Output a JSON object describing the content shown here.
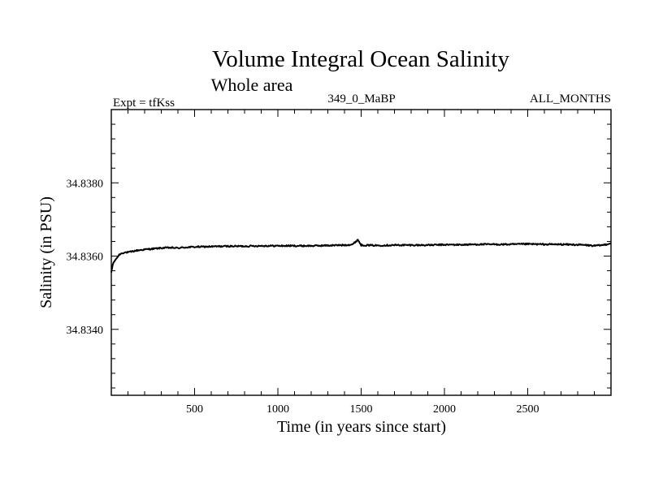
{
  "chart_data": {
    "type": "line",
    "title": "Volume Integral Ocean Salinity",
    "subtitle": "Whole area",
    "experiment_label": "Expt = tfKss",
    "run_label": "349_0_MaBP",
    "period_label": "ALL_MONTHS",
    "xlabel": "Time (in years since start)",
    "ylabel": "Salinity (in PSU)",
    "xlim": [
      0,
      3000
    ],
    "ylim": [
      34.8322,
      34.84
    ],
    "x_ticks": [
      500,
      1000,
      1500,
      2000,
      2500
    ],
    "x_tick_labels": [
      "500",
      "1000",
      "1500",
      "2000",
      "2500"
    ],
    "y_ticks": [
      34.834,
      34.836,
      34.838
    ],
    "y_tick_labels": [
      "34.8340",
      "34.8360",
      "34.8380"
    ],
    "grid": false,
    "series": [
      {
        "name": "Salinity",
        "x": [
          0,
          10,
          25,
          50,
          75,
          100,
          150,
          200,
          250,
          300,
          350,
          400,
          450,
          500,
          600,
          700,
          800,
          900,
          1000,
          1100,
          1200,
          1300,
          1400,
          1450,
          1480,
          1500,
          1600,
          1700,
          1800,
          1900,
          2000,
          2100,
          2200,
          2300,
          2400,
          2500,
          2600,
          2700,
          2800,
          2850,
          2900,
          2950,
          3000
        ],
        "values": [
          34.83555,
          34.8358,
          34.8359,
          34.83605,
          34.8361,
          34.8361,
          34.83615,
          34.83618,
          34.8362,
          34.83622,
          34.83623,
          34.83622,
          34.83624,
          34.83625,
          34.83626,
          34.83627,
          34.83627,
          34.83628,
          34.83628,
          34.83628,
          34.83628,
          34.83629,
          34.8363,
          34.83632,
          34.83645,
          34.8363,
          34.83629,
          34.8363,
          34.8363,
          34.8363,
          34.83631,
          34.83631,
          34.83632,
          34.83632,
          34.83632,
          34.83633,
          34.83632,
          34.83632,
          34.83631,
          34.8363,
          34.83628,
          34.8363,
          34.83635
        ]
      }
    ]
  }
}
